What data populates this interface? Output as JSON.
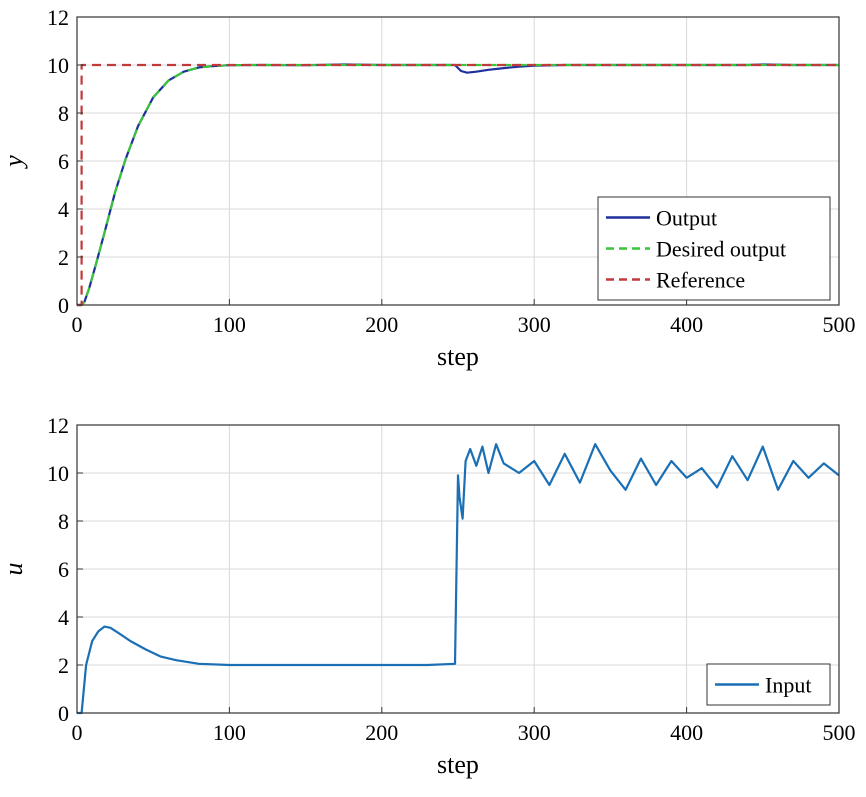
{
  "chart_data": [
    {
      "type": "line",
      "xlabel": "step",
      "ylabel": "y",
      "xlim": [
        0,
        500
      ],
      "ylim": [
        0,
        12
      ],
      "xticks": [
        0,
        100,
        200,
        300,
        400,
        500
      ],
      "yticks": [
        0,
        2,
        4,
        6,
        8,
        10,
        12
      ],
      "grid": true,
      "legend": "bottom-right",
      "series": [
        {
          "name": "Output",
          "color": "#1f2f9c",
          "style": "solid",
          "x": [
            0,
            3,
            5,
            8,
            12,
            18,
            25,
            32,
            40,
            50,
            60,
            70,
            80,
            90,
            100,
            120,
            150,
            175,
            200,
            230,
            248,
            252,
            256,
            262,
            270,
            280,
            290,
            300,
            320,
            350,
            400,
            440,
            450,
            470,
            500
          ],
          "values": [
            0,
            0,
            0.15,
            0.7,
            1.6,
            3.0,
            4.7,
            6.1,
            7.45,
            8.65,
            9.35,
            9.72,
            9.9,
            9.96,
            9.99,
            10.0,
            9.99,
            10.02,
            10.0,
            10.0,
            10.0,
            9.75,
            9.68,
            9.72,
            9.8,
            9.87,
            9.93,
            9.97,
            10.0,
            10.0,
            10.0,
            10.0,
            10.02,
            10.0,
            10.0
          ]
        },
        {
          "name": "Desired output",
          "color": "#39c43a",
          "style": "dashed",
          "x": [
            0,
            3,
            5,
            8,
            12,
            18,
            25,
            32,
            40,
            50,
            60,
            70,
            80,
            90,
            100,
            120,
            150,
            200,
            300,
            400,
            500
          ],
          "values": [
            0,
            0,
            0.15,
            0.7,
            1.6,
            3.0,
            4.7,
            6.1,
            7.45,
            8.65,
            9.35,
            9.72,
            9.9,
            9.96,
            9.99,
            10.0,
            10.0,
            10.0,
            10.0,
            10.0,
            10.0
          ]
        },
        {
          "name": "Reference",
          "color": "#c0393b",
          "style": "dashed",
          "x": [
            0,
            3,
            3,
            500
          ],
          "values": [
            0,
            0,
            10,
            10
          ]
        }
      ]
    },
    {
      "type": "line",
      "xlabel": "step",
      "ylabel": "u",
      "xlim": [
        0,
        500
      ],
      "ylim": [
        0,
        12
      ],
      "xticks": [
        0,
        100,
        200,
        300,
        400,
        500
      ],
      "yticks": [
        0,
        2,
        4,
        6,
        8,
        10,
        12
      ],
      "grid": true,
      "legend": "bottom-right",
      "series": [
        {
          "name": "Input",
          "color": "#1a6fb5",
          "style": "solid",
          "x": [
            0,
            3,
            6,
            10,
            14,
            18,
            22,
            28,
            35,
            45,
            55,
            65,
            80,
            100,
            130,
            160,
            200,
            230,
            248,
            250,
            251,
            253,
            255,
            258,
            262,
            266,
            270,
            275,
            280,
            290,
            300,
            310,
            320,
            330,
            340,
            350,
            360,
            370,
            380,
            390,
            400,
            410,
            420,
            430,
            440,
            450,
            460,
            470,
            480,
            490,
            500
          ],
          "values": [
            0,
            0,
            2.0,
            3.0,
            3.4,
            3.6,
            3.55,
            3.3,
            3.0,
            2.65,
            2.35,
            2.2,
            2.05,
            2.0,
            2.0,
            2.0,
            2.0,
            2.0,
            2.05,
            9.9,
            9.0,
            8.1,
            10.5,
            11.0,
            10.3,
            11.1,
            10.0,
            11.2,
            10.4,
            10.0,
            10.5,
            9.5,
            10.8,
            9.6,
            11.2,
            10.1,
            9.3,
            10.6,
            9.5,
            10.5,
            9.8,
            10.2,
            9.4,
            10.7,
            9.7,
            11.1,
            9.3,
            10.5,
            9.8,
            10.4,
            9.9
          ]
        }
      ]
    }
  ]
}
